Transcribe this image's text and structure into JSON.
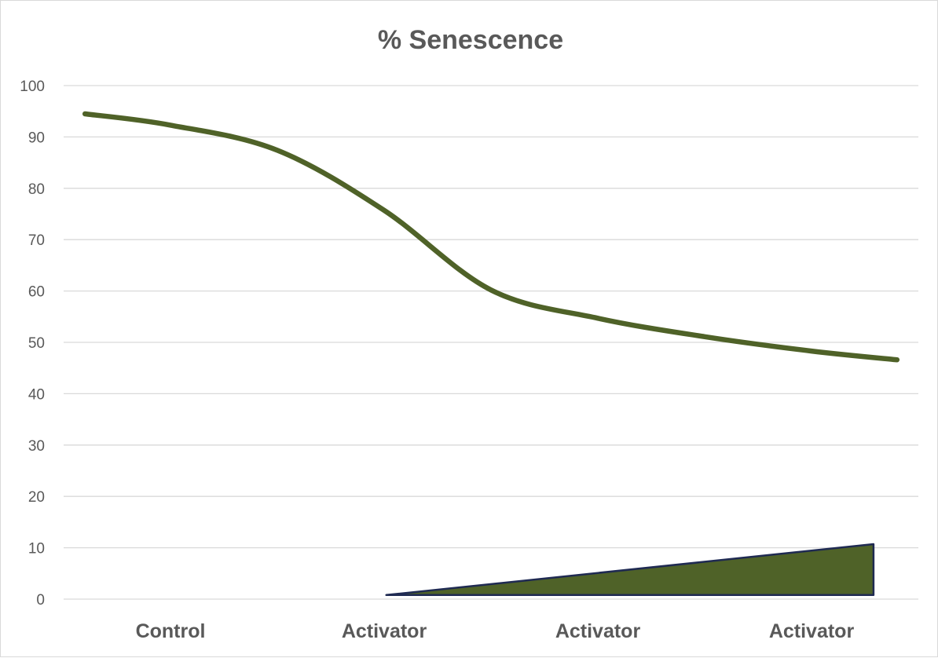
{
  "chart_data": {
    "type": "line",
    "title": "% Senescence",
    "xlabel": "",
    "ylabel": "",
    "ylim": [
      0,
      100
    ],
    "y_ticks": [
      0,
      10,
      20,
      30,
      40,
      50,
      60,
      70,
      80,
      90,
      100
    ],
    "grid": true,
    "legend": "none",
    "categories": [
      "Control",
      "Activator",
      "Activator",
      "Activator"
    ],
    "series": [
      {
        "color": "#4f6228",
        "smooth": true,
        "points": [
          {
            "x": 0.1,
            "y": 94.5
          },
          {
            "x": 0.5,
            "y": 92.3
          },
          {
            "x": 1.0,
            "y": 87.4
          },
          {
            "x": 1.5,
            "y": 75.7
          },
          {
            "x": 2.0,
            "y": 60.2
          },
          {
            "x": 2.5,
            "y": 54.7
          },
          {
            "x": 3.0,
            "y": 51.1
          },
          {
            "x": 3.5,
            "y": 48.3
          },
          {
            "x": 3.9,
            "y": 46.6
          }
        ]
      }
    ],
    "annotations": [
      {
        "type": "ramp-triangle",
        "description": "increasing activator dose",
        "fill": "#4f6228",
        "stroke": "#1f2a52",
        "points": [
          {
            "x": 1.51,
            "y": 0.8
          },
          {
            "x": 3.79,
            "y": 10.7
          },
          {
            "x": 3.79,
            "y": 0.8
          }
        ]
      }
    ]
  }
}
